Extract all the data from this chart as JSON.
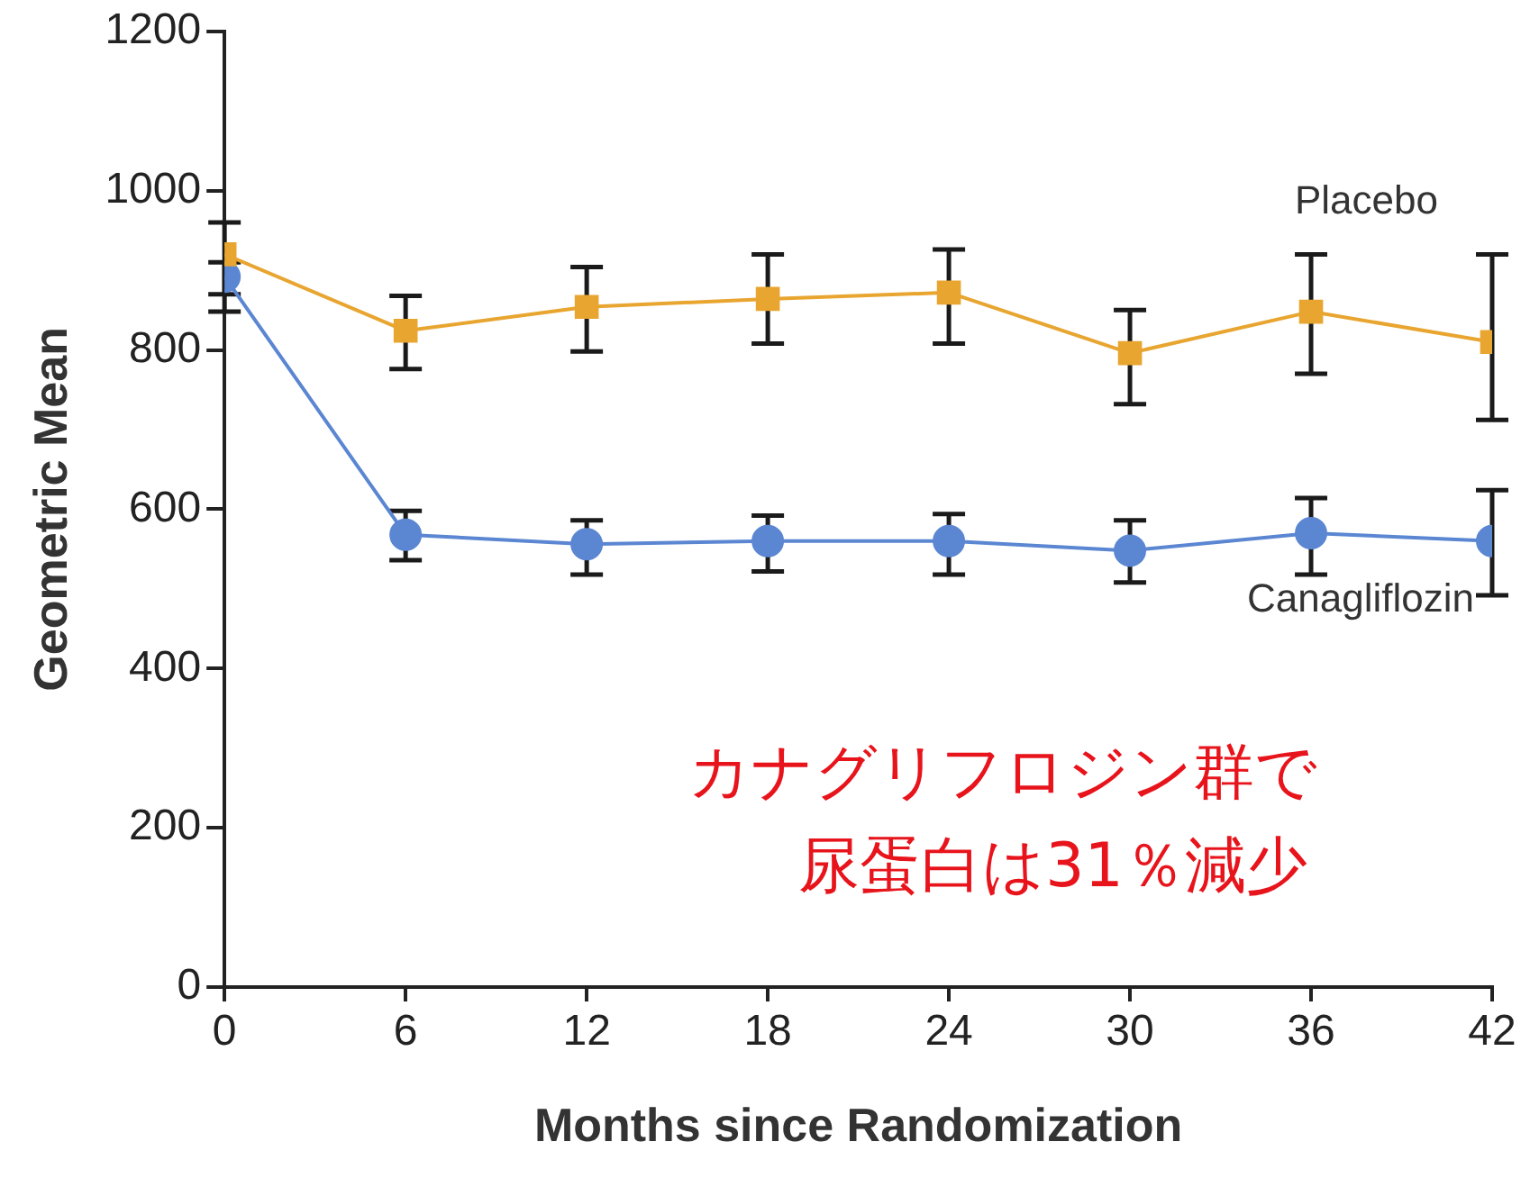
{
  "chart_data": {
    "type": "line",
    "xlabel": "Months since Randomization",
    "ylabel": "Geometric Mean",
    "x": [
      0,
      6,
      12,
      18,
      24,
      30,
      36,
      42
    ],
    "series": [
      {
        "name": "Placebo",
        "color": "#e8a530",
        "marker": "square",
        "values": [
          920,
          824,
          854,
          864,
          872,
          796,
          848,
          810
        ],
        "errors": [
          [
            848,
            960
          ],
          [
            776,
            868
          ],
          [
            798,
            904
          ],
          [
            808,
            920
          ],
          [
            808,
            926
          ],
          [
            732,
            850
          ],
          [
            770,
            920
          ],
          [
            712,
            920
          ]
        ]
      },
      {
        "name": "Canagliflozin",
        "color": "#5b86d2",
        "marker": "circle",
        "values": [
          892,
          568,
          556,
          560,
          560,
          548,
          570,
          560
        ],
        "errors": [
          [
            870,
            910
          ],
          [
            536,
            598
          ],
          [
            518,
            586
          ],
          [
            522,
            592
          ],
          [
            518,
            594
          ],
          [
            508,
            586
          ],
          [
            518,
            614
          ],
          [
            492,
            624
          ]
        ]
      }
    ],
    "xlim": [
      0,
      42
    ],
    "xticks": [
      0,
      6,
      12,
      18,
      24,
      30,
      36,
      42
    ],
    "ylim": [
      0,
      1200
    ],
    "yticks": [
      0,
      200,
      400,
      600,
      800,
      1000,
      1200
    ],
    "grid": false,
    "legend": false,
    "annotations": [
      "カナグリフロジン群で",
      "尿蛋白は31％減少"
    ]
  }
}
